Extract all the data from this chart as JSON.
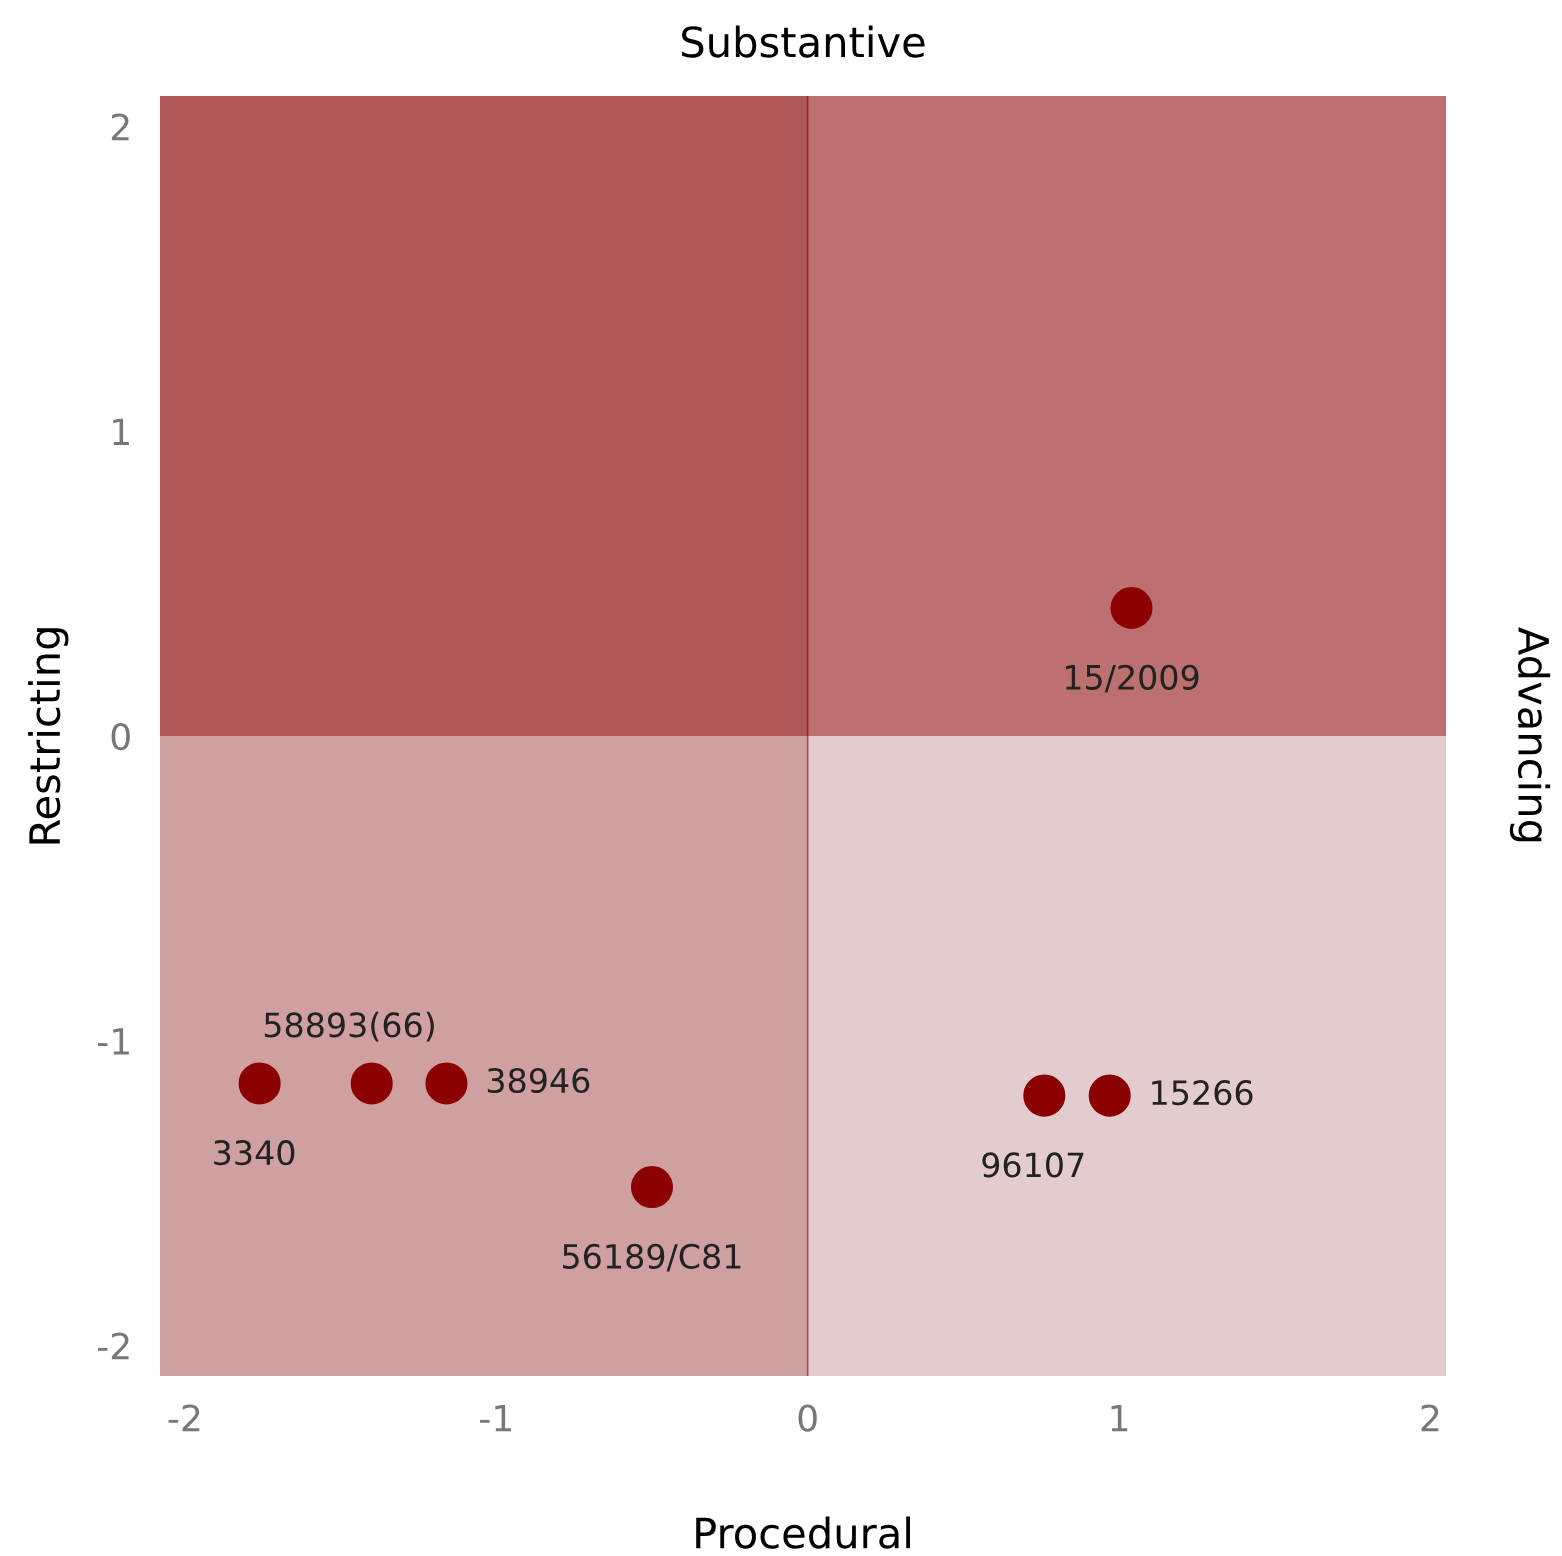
{
  "chart_data": {
    "type": "scatter",
    "title": "Substantive",
    "xlabel": "Procedural",
    "ylabel": "Restricting",
    "y2label": "Advancing",
    "x": [
      1.04,
      -1.76,
      -1.4,
      -1.16,
      -0.5,
      0.76,
      0.97
    ],
    "series": [
      {
        "color": "#8b0000",
        "values": [
          0.42,
          -1.14,
          -1.14,
          -1.14,
          -1.48,
          -1.18,
          -1.18
        ]
      }
    ],
    "marker": "circle",
    "xlim": [
      -2.08,
      2.05
    ],
    "ylim": [
      -2.1,
      2.1
    ],
    "xticks": [
      {
        "value": -2,
        "label": "-2"
      },
      {
        "value": -1,
        "label": "-1"
      },
      0,
      1,
      2
    ],
    "yticks": [
      {
        "value": -2,
        "label": "-2"
      },
      {
        "value": -1,
        "label": "-1"
      },
      0,
      1,
      2
    ],
    "bands": [
      {
        "axis": "x",
        "from": -2.08,
        "to": 0,
        "color": "#8b0000"
      },
      {
        "axis": "y",
        "from": 0,
        "to": 2.1,
        "color": "#8b0000"
      }
    ],
    "ref_lines": [
      {
        "axis": "x",
        "value": 0,
        "color": "#8b0000"
      }
    ],
    "annotations": [
      {
        "text": "15/2009",
        "x": 1.04,
        "y": 0.42
      },
      {
        "text": "3340",
        "x": -1.76,
        "y": -1.14
      },
      {
        "text": "58893(66)",
        "x": -1.4,
        "y": -1.14
      },
      {
        "text": "38946",
        "x": -1.16,
        "y": -1.14
      },
      {
        "text": "56189/C81",
        "x": -0.5,
        "y": -1.48
      },
      {
        "text": "96107",
        "x": 0.76,
        "y": -1.18
      },
      {
        "text": "15266",
        "x": 0.97,
        "y": -1.18
      }
    ],
    "grid": false,
    "legend": false
  }
}
